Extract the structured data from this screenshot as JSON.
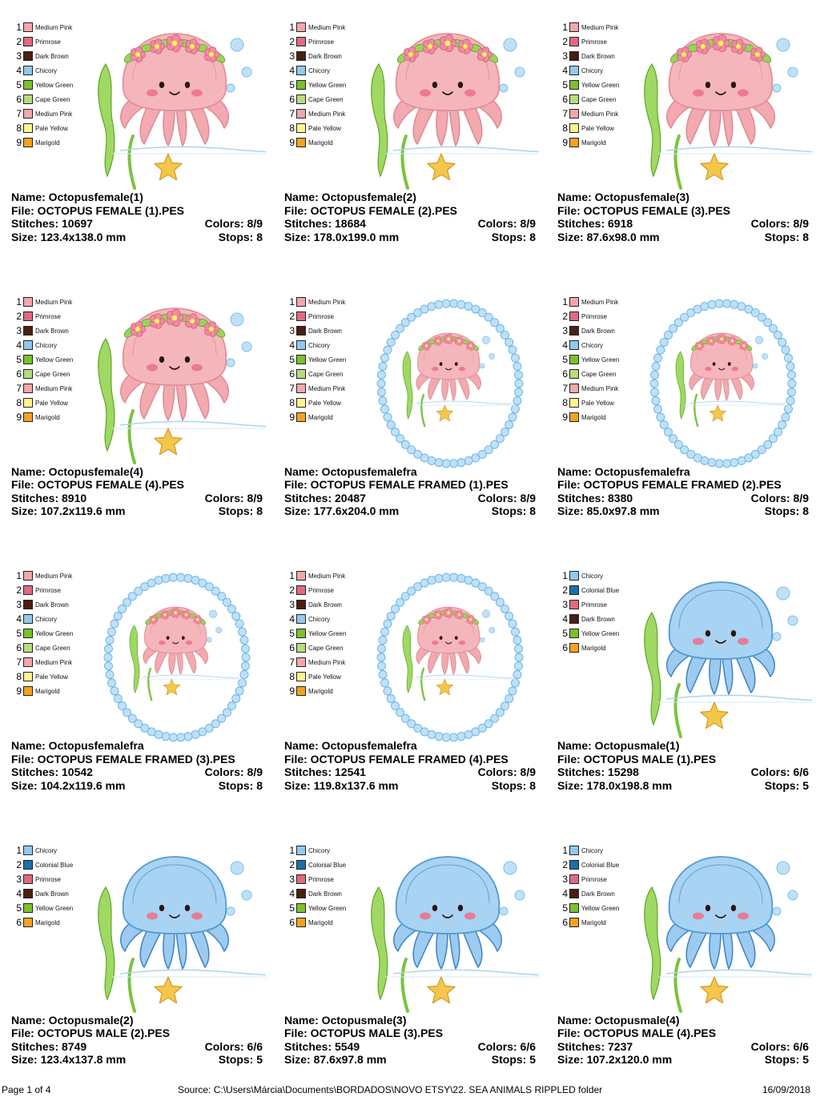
{
  "palettes": {
    "female": [
      {
        "label": "Medium Pink",
        "color": "#f2a7ad"
      },
      {
        "label": "Primrose",
        "color": "#e06a80"
      },
      {
        "label": "Dark Brown",
        "color": "#4a1f12"
      },
      {
        "label": "Chicory",
        "color": "#92c9ef"
      },
      {
        "label": "Yellow Green",
        "color": "#79c22e"
      },
      {
        "label": "Cape Green",
        "color": "#b5dc7e"
      },
      {
        "label": "Medium Pink",
        "color": "#f2a7ad"
      },
      {
        "label": "Pale Yellow",
        "color": "#fff48e"
      },
      {
        "label": "Marigold",
        "color": "#f5a21e"
      }
    ],
    "male": [
      {
        "label": "Chicory",
        "color": "#92c9ef"
      },
      {
        "label": "Colonial Blue",
        "color": "#1b6fae"
      },
      {
        "label": "Primrose",
        "color": "#e06a80"
      },
      {
        "label": "Dark Brown",
        "color": "#4a1f12"
      },
      {
        "label": "Yellow Green",
        "color": "#79c22e"
      },
      {
        "label": "Marigold",
        "color": "#f5a21e"
      }
    ]
  },
  "designs": [
    {
      "name": "Name: Octopusfemale(1)",
      "file": "File: OCTOPUS FEMALE (1).PES",
      "stitches": "Stitches: 10697",
      "colors": "Colors: 8/9",
      "size": "Size: 123.4x138.0 mm",
      "stops": "Stops: 8",
      "palette": "female",
      "variant": "female",
      "framed": false
    },
    {
      "name": "Name: Octopusfemale(2)",
      "file": "File: OCTOPUS FEMALE (2).PES",
      "stitches": "Stitches: 18684",
      "colors": "Colors: 8/9",
      "size": "Size: 178.0x199.0 mm",
      "stops": "Stops: 8",
      "palette": "female",
      "variant": "female",
      "framed": false
    },
    {
      "name": "Name: Octopusfemale(3)",
      "file": "File: OCTOPUS FEMALE (3).PES",
      "stitches": "Stitches: 6918",
      "colors": "Colors: 8/9",
      "size": "Size: 87.6x98.0 mm",
      "stops": "Stops: 8",
      "palette": "female",
      "variant": "female",
      "framed": false
    },
    {
      "name": "Name: Octopusfemale(4)",
      "file": "File: OCTOPUS FEMALE (4).PES",
      "stitches": "Stitches: 8910",
      "colors": "Colors: 8/9",
      "size": "Size: 107.2x119.6 mm",
      "stops": "Stops: 8",
      "palette": "female",
      "variant": "female",
      "framed": false
    },
    {
      "name": "Name: Octopusfemalefra",
      "file": "File: OCTOPUS FEMALE FRAMED (1).PES",
      "stitches": "Stitches: 20487",
      "colors": "Colors: 8/9",
      "size": "Size: 177.6x204.0 mm",
      "stops": "Stops: 8",
      "palette": "female",
      "variant": "female",
      "framed": true
    },
    {
      "name": "Name: Octopusfemalefra",
      "file": "File: OCTOPUS FEMALE FRAMED (2).PES",
      "stitches": "Stitches: 8380",
      "colors": "Colors: 8/9",
      "size": "Size: 85.0x97.8 mm",
      "stops": "Stops: 8",
      "palette": "female",
      "variant": "female",
      "framed": true
    },
    {
      "name": "Name: Octopusfemalefra",
      "file": "File: OCTOPUS FEMALE FRAMED (3).PES",
      "stitches": "Stitches: 10542",
      "colors": "Colors: 8/9",
      "size": "Size: 104.2x119.6 mm",
      "stops": "Stops: 8",
      "palette": "female",
      "variant": "female",
      "framed": true
    },
    {
      "name": "Name: Octopusfemalefra",
      "file": "File: OCTOPUS FEMALE FRAMED (4).PES",
      "stitches": "Stitches: 12541",
      "colors": "Colors: 8/9",
      "size": "Size: 119.8x137.6 mm",
      "stops": "Stops: 8",
      "palette": "female",
      "variant": "female",
      "framed": true
    },
    {
      "name": "Name: Octopusmale(1)",
      "file": "File: OCTOPUS MALE (1).PES",
      "stitches": "Stitches: 15298",
      "colors": "Colors: 6/6",
      "size": "Size: 178.0x198.8 mm",
      "stops": "Stops: 5",
      "palette": "male",
      "variant": "male",
      "framed": false
    },
    {
      "name": "Name: Octopusmale(2)",
      "file": "File: OCTOPUS MALE (2).PES",
      "stitches": "Stitches: 8749",
      "colors": "Colors: 6/6",
      "size": "Size: 123.4x137.8 mm",
      "stops": "Stops: 5",
      "palette": "male",
      "variant": "male",
      "framed": false
    },
    {
      "name": "Name: Octopusmale(3)",
      "file": "File: OCTOPUS MALE (3).PES",
      "stitches": "Stitches: 5549",
      "colors": "Colors: 6/6",
      "size": "Size: 87.6x97.8 mm",
      "stops": "Stops: 5",
      "palette": "male",
      "variant": "male",
      "framed": false
    },
    {
      "name": "Name: Octopusmale(4)",
      "file": "File: OCTOPUS MALE (4).PES",
      "stitches": "Stitches: 7237",
      "colors": "Colors: 6/6",
      "size": "Size: 107.2x120.0 mm",
      "stops": "Stops: 5",
      "palette": "male",
      "variant": "male",
      "framed": false
    }
  ],
  "footer": {
    "page": "Page 1 of 4",
    "source": "Source: C:\\Users\\Márcia\\Documents\\BORDADOS\\NOVO ETSY\\22. SEA ANIMALS RIPPLED folder",
    "date": "16/09/2018"
  }
}
